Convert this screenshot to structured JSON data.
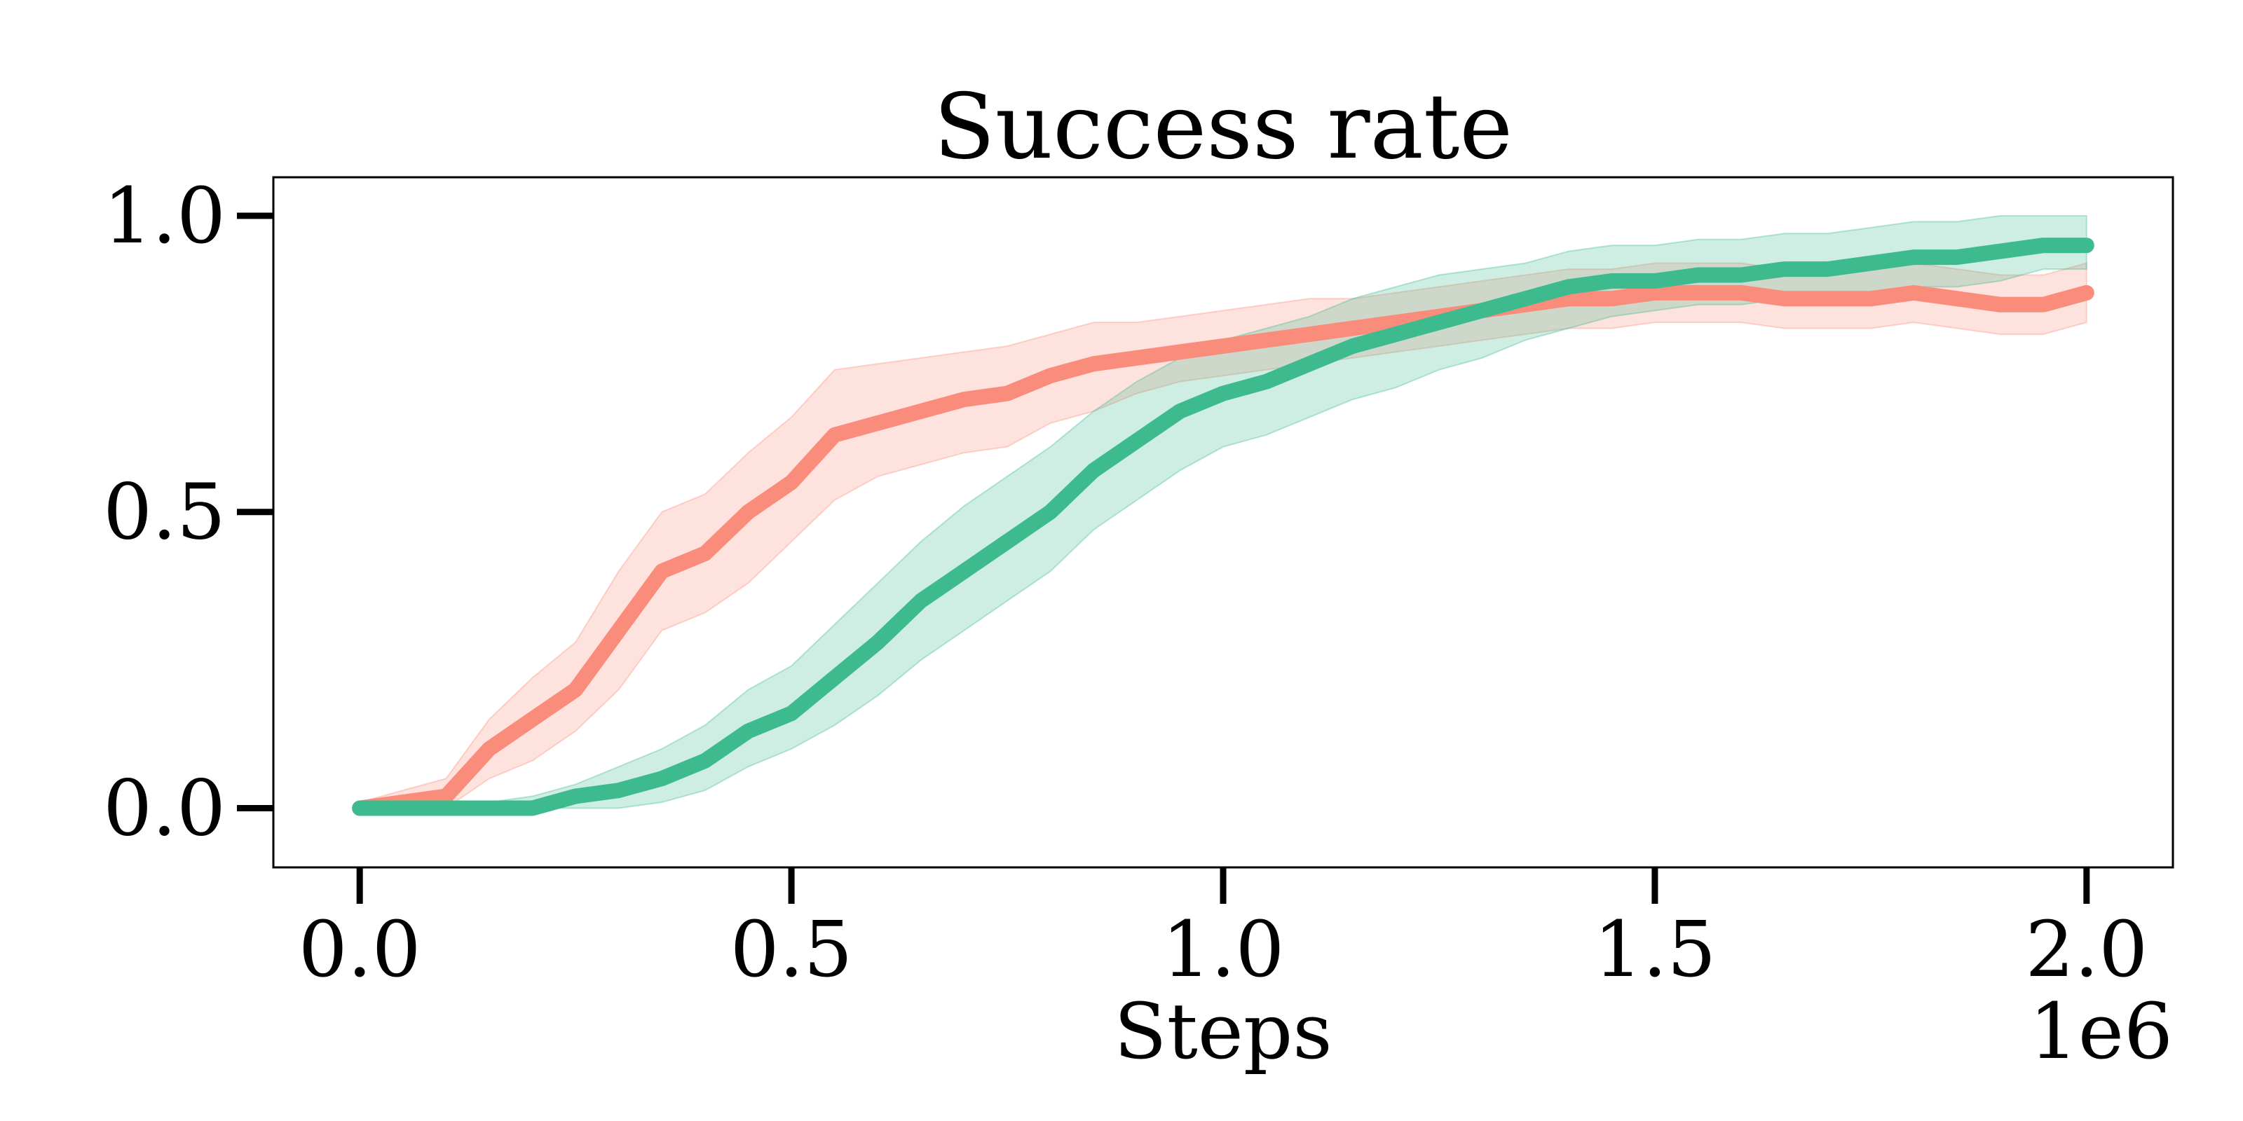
{
  "chart_data": {
    "type": "line",
    "title": "Success rate",
    "xlabel": "Steps",
    "ylabel": "",
    "x_multiplier_label": "1e6",
    "xlim": [
      -0.1,
      2.1
    ],
    "ylim": [
      -0.1,
      1.065
    ],
    "x_ticks": [
      0.0,
      0.5,
      1.0,
      1.5,
      2.0
    ],
    "x_tick_labels": [
      "0.0",
      "0.5",
      "1.0",
      "1.5",
      "2.0"
    ],
    "y_ticks": [
      0.0,
      0.5,
      1.0
    ],
    "y_tick_labels": [
      "0.0",
      "0.5",
      "1.0"
    ],
    "grid": false,
    "legend": "none",
    "series": [
      {
        "color": "#fa8c7c",
        "x": [
          0.0,
          0.05,
          0.1,
          0.15,
          0.2,
          0.25,
          0.3,
          0.35,
          0.4,
          0.45,
          0.5,
          0.55,
          0.6,
          0.65,
          0.7,
          0.75,
          0.8,
          0.85,
          0.9,
          0.95,
          1.0,
          1.05,
          1.1,
          1.15,
          1.2,
          1.25,
          1.3,
          1.35,
          1.4,
          1.45,
          1.5,
          1.55,
          1.6,
          1.65,
          1.7,
          1.75,
          1.8,
          1.85,
          1.9,
          1.95,
          2.0
        ],
        "y": [
          0.0,
          0.01,
          0.02,
          0.1,
          0.15,
          0.2,
          0.3,
          0.4,
          0.43,
          0.5,
          0.55,
          0.63,
          0.65,
          0.67,
          0.69,
          0.7,
          0.73,
          0.75,
          0.76,
          0.77,
          0.78,
          0.79,
          0.8,
          0.81,
          0.82,
          0.83,
          0.84,
          0.85,
          0.86,
          0.86,
          0.87,
          0.87,
          0.87,
          0.86,
          0.86,
          0.86,
          0.87,
          0.86,
          0.85,
          0.85,
          0.87
        ],
        "lower": [
          0.0,
          0.0,
          0.0,
          0.05,
          0.08,
          0.13,
          0.2,
          0.3,
          0.33,
          0.38,
          0.45,
          0.52,
          0.56,
          0.58,
          0.6,
          0.61,
          0.65,
          0.67,
          0.7,
          0.72,
          0.73,
          0.74,
          0.75,
          0.76,
          0.77,
          0.78,
          0.79,
          0.8,
          0.81,
          0.81,
          0.82,
          0.82,
          0.82,
          0.81,
          0.81,
          0.81,
          0.82,
          0.81,
          0.8,
          0.8,
          0.82
        ],
        "upper": [
          0.01,
          0.03,
          0.05,
          0.15,
          0.22,
          0.28,
          0.4,
          0.5,
          0.53,
          0.6,
          0.66,
          0.74,
          0.75,
          0.76,
          0.77,
          0.78,
          0.8,
          0.82,
          0.82,
          0.83,
          0.84,
          0.85,
          0.86,
          0.86,
          0.87,
          0.88,
          0.89,
          0.9,
          0.91,
          0.91,
          0.92,
          0.92,
          0.92,
          0.91,
          0.91,
          0.91,
          0.92,
          0.91,
          0.9,
          0.9,
          0.92
        ]
      },
      {
        "color": "#3dbb8f",
        "x": [
          0.0,
          0.05,
          0.1,
          0.15,
          0.2,
          0.25,
          0.3,
          0.35,
          0.4,
          0.45,
          0.5,
          0.55,
          0.6,
          0.65,
          0.7,
          0.75,
          0.8,
          0.85,
          0.9,
          0.95,
          1.0,
          1.05,
          1.1,
          1.15,
          1.2,
          1.25,
          1.3,
          1.35,
          1.4,
          1.45,
          1.5,
          1.55,
          1.6,
          1.65,
          1.7,
          1.75,
          1.8,
          1.85,
          1.9,
          1.95,
          2.0
        ],
        "y": [
          0.0,
          0.0,
          0.0,
          0.0,
          0.0,
          0.02,
          0.03,
          0.05,
          0.08,
          0.13,
          0.16,
          0.22,
          0.28,
          0.35,
          0.4,
          0.45,
          0.5,
          0.57,
          0.62,
          0.67,
          0.7,
          0.72,
          0.75,
          0.78,
          0.8,
          0.82,
          0.84,
          0.86,
          0.88,
          0.89,
          0.89,
          0.9,
          0.9,
          0.91,
          0.91,
          0.92,
          0.93,
          0.93,
          0.94,
          0.95,
          0.95
        ],
        "lower": [
          0.0,
          0.0,
          0.0,
          0.0,
          0.0,
          0.0,
          0.0,
          0.01,
          0.03,
          0.07,
          0.1,
          0.14,
          0.19,
          0.25,
          0.3,
          0.35,
          0.4,
          0.47,
          0.52,
          0.57,
          0.61,
          0.63,
          0.66,
          0.69,
          0.71,
          0.74,
          0.76,
          0.79,
          0.81,
          0.83,
          0.84,
          0.85,
          0.85,
          0.86,
          0.86,
          0.87,
          0.88,
          0.88,
          0.89,
          0.91,
          0.91
        ],
        "upper": [
          0.01,
          0.01,
          0.01,
          0.01,
          0.02,
          0.04,
          0.07,
          0.1,
          0.14,
          0.2,
          0.24,
          0.31,
          0.38,
          0.45,
          0.51,
          0.56,
          0.61,
          0.67,
          0.72,
          0.76,
          0.79,
          0.81,
          0.83,
          0.86,
          0.88,
          0.9,
          0.91,
          0.92,
          0.94,
          0.95,
          0.95,
          0.96,
          0.96,
          0.97,
          0.97,
          0.98,
          0.99,
          0.99,
          1.0,
          1.0,
          1.0
        ]
      }
    ]
  }
}
